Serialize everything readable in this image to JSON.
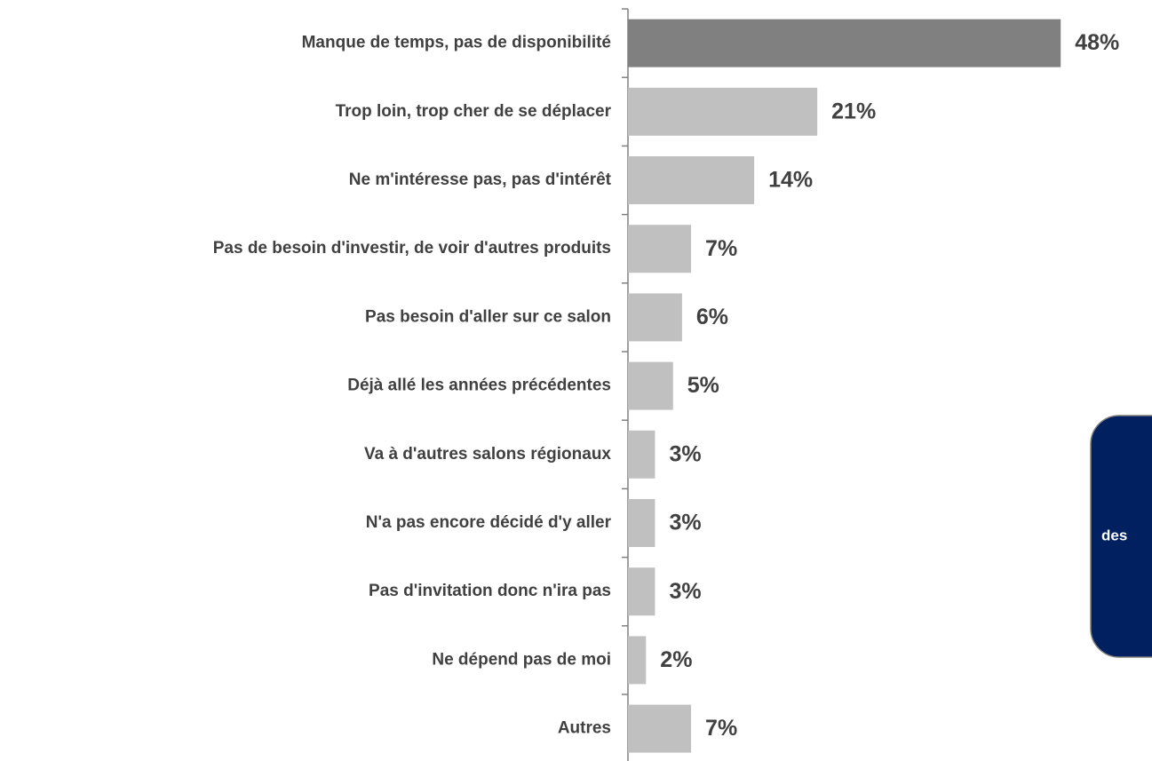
{
  "chart_data": {
    "type": "bar",
    "orientation": "horizontal",
    "categories": [
      "Manque de temps, pas de disponibilité",
      "Trop loin, trop cher de se déplacer",
      "Ne m'intéresse pas, pas d'intérêt",
      "Pas de besoin d'investir, de voir d'autres produits",
      "Pas besoin d'aller sur ce salon",
      "Déjà allé les années précédentes",
      "Va à d'autres salons régionaux",
      "N'a pas encore décidé d'y aller",
      "Pas d'invitation donc n'ira pas",
      "Ne dépend pas de moi",
      "Autres"
    ],
    "values": [
      48,
      21,
      14,
      7,
      6,
      5,
      3,
      3,
      3,
      2,
      7
    ],
    "value_labels": [
      "48%",
      "21%",
      "14%",
      "7%",
      "6%",
      "5%",
      "3%",
      "3%",
      "3%",
      "2%",
      "7%"
    ],
    "colors": [
      "#808080",
      "#c0c0c0",
      "#c0c0c0",
      "#c0c0c0",
      "#c0c0c0",
      "#c0c0c0",
      "#c0c0c0",
      "#c0c0c0",
      "#c0c0c0",
      "#c0c0c0",
      "#c0c0c0"
    ],
    "annotation": "des"
  }
}
